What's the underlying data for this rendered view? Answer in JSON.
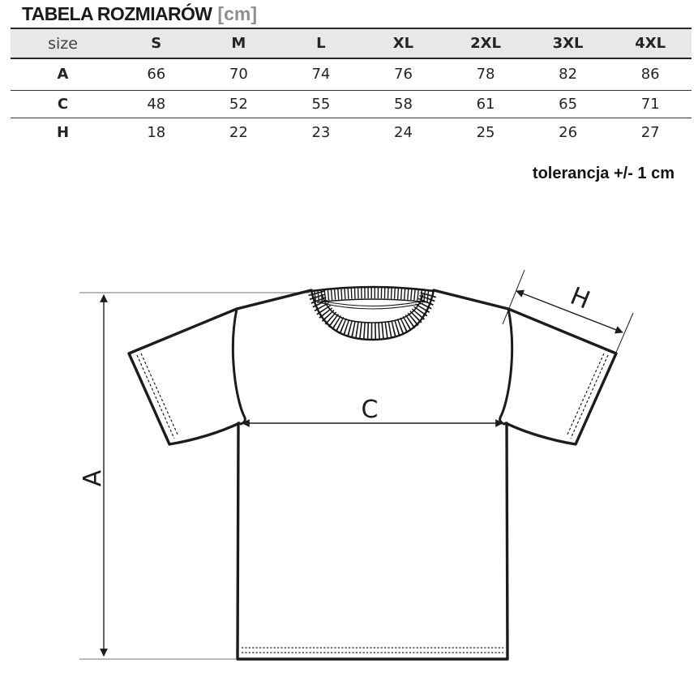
{
  "header": {
    "title": "TABELA ROZMIARÓW",
    "unit": "[cm]"
  },
  "table": {
    "size_label": "size",
    "columns": [
      "S",
      "M",
      "L",
      "XL",
      "2XL",
      "3XL",
      "4XL"
    ],
    "rows": [
      {
        "label": "A",
        "values": [
          "66",
          "70",
          "74",
          "76",
          "78",
          "82",
          "86"
        ]
      },
      {
        "label": "C",
        "values": [
          "48",
          "52",
          "55",
          "58",
          "61",
          "65",
          "71"
        ]
      },
      {
        "label": "H",
        "values": [
          "18",
          "22",
          "23",
          "24",
          "25",
          "26",
          "27"
        ]
      }
    ],
    "tolerance_note": "tolerancja +/- 1 cm"
  },
  "diagram": {
    "labels": {
      "a": "A",
      "c": "C",
      "h": "H"
    }
  },
  "colors": {
    "line": "#1c1c1c",
    "extension_gray": "#8f8f8f",
    "header_bg": "#e8e8e8",
    "unit_gray": "#8f8f8f",
    "text": "#262324"
  }
}
